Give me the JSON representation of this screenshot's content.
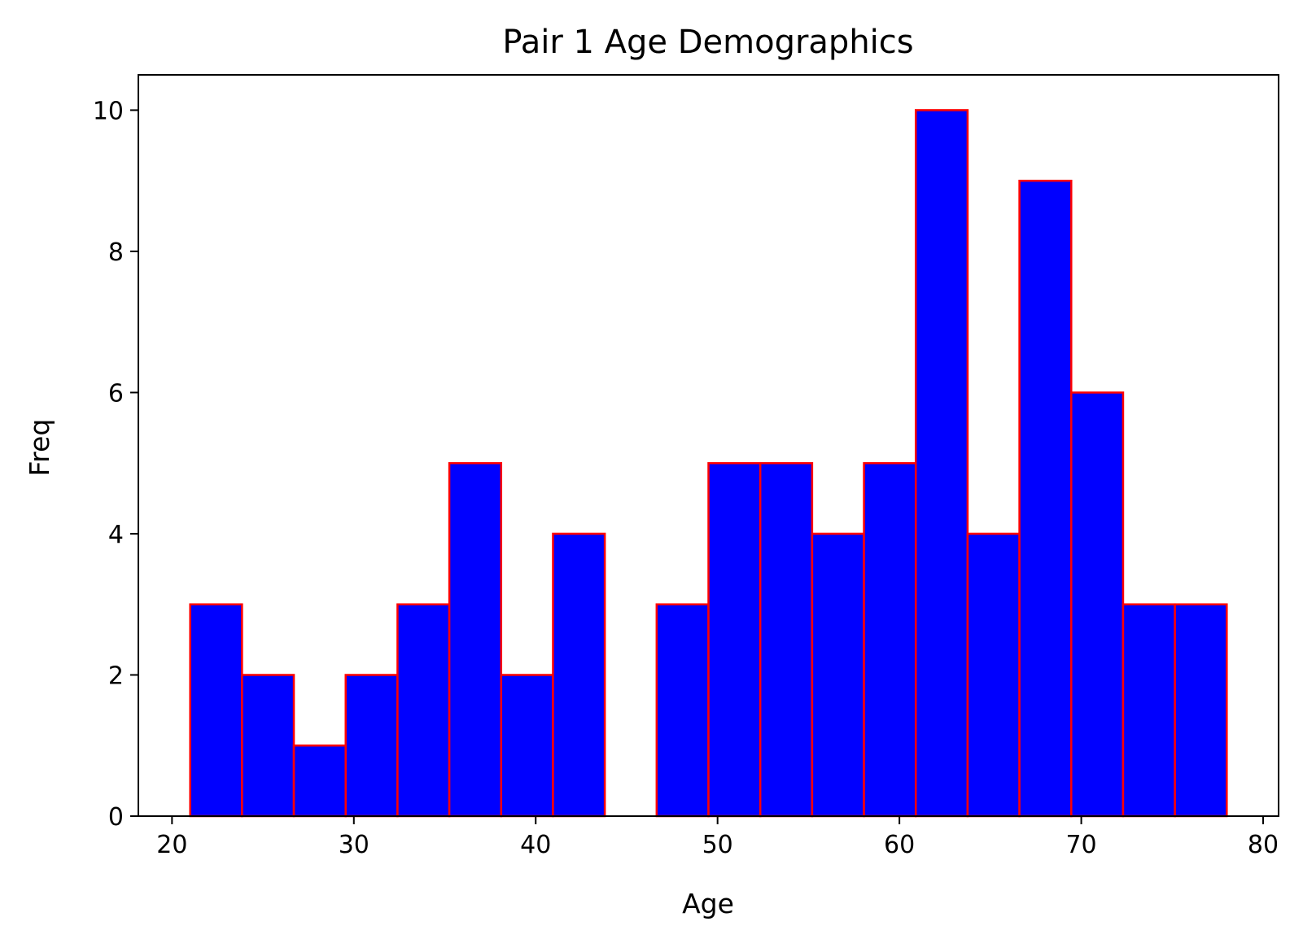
{
  "chart_data": {
    "type": "bar",
    "title": "Pair 1 Age Demographics",
    "xlabel": "Age",
    "ylabel": "Freq",
    "xlim": [
      18.15,
      80.85
    ],
    "ylim": [
      0,
      10.5
    ],
    "xticks": [
      20,
      30,
      40,
      50,
      60,
      70,
      80
    ],
    "yticks": [
      0,
      2,
      4,
      6,
      8,
      10
    ],
    "bins": [
      {
        "start": 21.0,
        "end": 23.85,
        "value": 3
      },
      {
        "start": 23.85,
        "end": 26.7,
        "value": 2
      },
      {
        "start": 26.7,
        "end": 29.55,
        "value": 1
      },
      {
        "start": 29.55,
        "end": 32.4,
        "value": 2
      },
      {
        "start": 32.4,
        "end": 35.25,
        "value": 3
      },
      {
        "start": 35.25,
        "end": 38.1,
        "value": 5
      },
      {
        "start": 38.1,
        "end": 40.95,
        "value": 2
      },
      {
        "start": 40.95,
        "end": 43.8,
        "value": 4
      },
      {
        "start": 43.8,
        "end": 46.65,
        "value": 0
      },
      {
        "start": 46.65,
        "end": 49.5,
        "value": 3
      },
      {
        "start": 49.5,
        "end": 52.35,
        "value": 5
      },
      {
        "start": 52.35,
        "end": 55.2,
        "value": 5
      },
      {
        "start": 55.2,
        "end": 58.05,
        "value": 4
      },
      {
        "start": 58.05,
        "end": 60.9,
        "value": 5
      },
      {
        "start": 60.9,
        "end": 63.75,
        "value": 10
      },
      {
        "start": 63.75,
        "end": 66.6,
        "value": 4
      },
      {
        "start": 66.6,
        "end": 69.45,
        "value": 9
      },
      {
        "start": 69.45,
        "end": 72.3,
        "value": 6
      },
      {
        "start": 72.3,
        "end": 75.15,
        "value": 3
      },
      {
        "start": 75.15,
        "end": 78.0,
        "value": 3
      }
    ],
    "bar_color": "#0000ff",
    "edge_color": "#ff0000",
    "grid": false,
    "legend": "none"
  }
}
